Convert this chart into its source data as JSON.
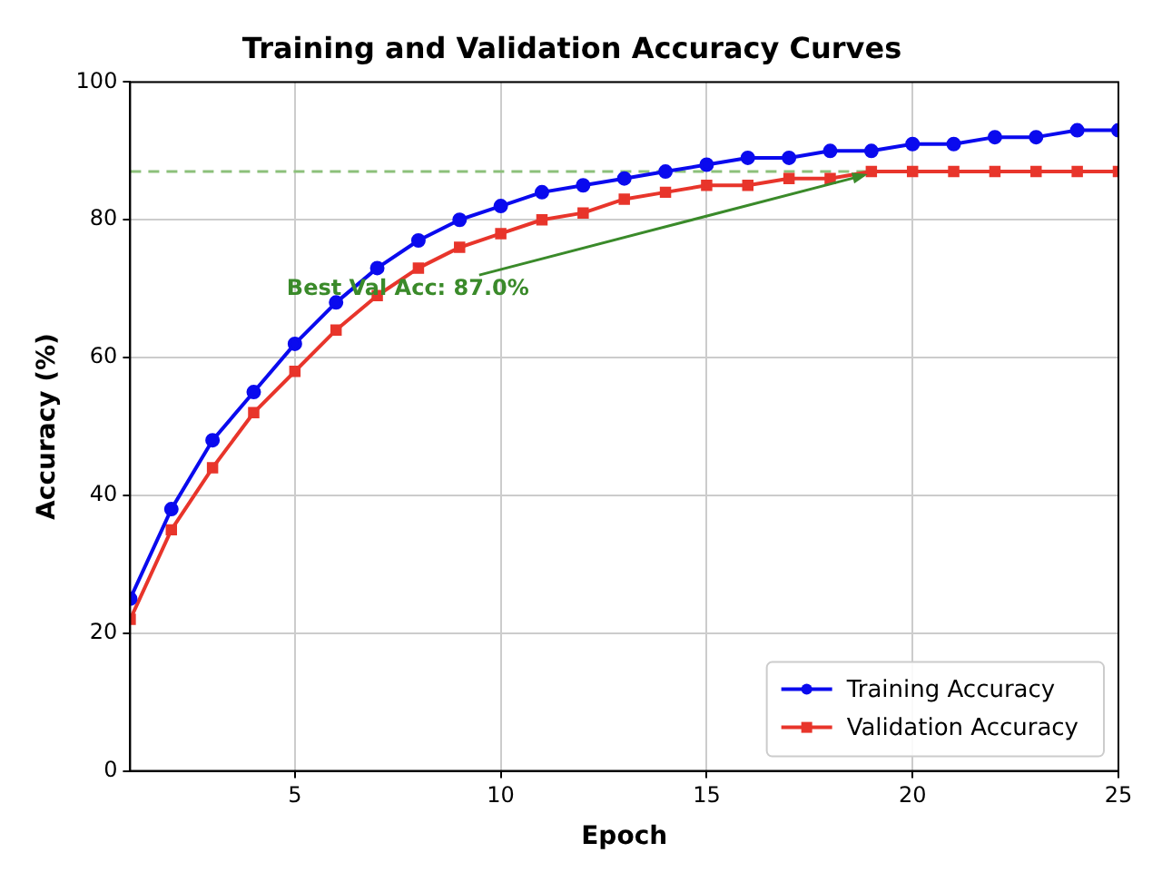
{
  "chart_data": {
    "type": "line",
    "title": "Training and Validation Accuracy Curves",
    "xlabel": "Epoch",
    "ylabel": "Accuracy (%)",
    "x": [
      1,
      2,
      3,
      4,
      5,
      6,
      7,
      8,
      9,
      10,
      11,
      12,
      13,
      14,
      15,
      16,
      17,
      18,
      19,
      20,
      21,
      22,
      23,
      24,
      25
    ],
    "series": [
      {
        "name": "Training Accuracy",
        "color": "#0a0aee",
        "marker": "circle",
        "values": [
          25,
          38,
          48,
          55,
          62,
          68,
          73,
          77,
          80,
          82,
          84,
          85,
          86,
          87,
          88,
          89,
          89,
          90,
          90,
          91,
          91,
          92,
          92,
          93,
          93
        ]
      },
      {
        "name": "Validation Accuracy",
        "color": "#e8352b",
        "marker": "square",
        "values": [
          22,
          35,
          44,
          52,
          58,
          64,
          69,
          73,
          76,
          78,
          80,
          81,
          83,
          84,
          85,
          85,
          86,
          86,
          87,
          87,
          87,
          87,
          87,
          87,
          87
        ]
      }
    ],
    "xlim": [
      1,
      25
    ],
    "xticks": [
      5,
      10,
      15,
      20,
      25
    ],
    "ylim": [
      0,
      100
    ],
    "yticks": [
      0,
      20,
      40,
      60,
      80,
      100
    ],
    "ref_lines": [
      {
        "axis": "y",
        "value": 87,
        "color": "#8cc07a",
        "line_style": "dashed"
      }
    ],
    "annotations": [
      {
        "text": "Best Val Acc: 87.0%",
        "x": 19,
        "y": 87
      }
    ],
    "grid": true,
    "legend": "bottom right",
    "line_style": "solid"
  }
}
